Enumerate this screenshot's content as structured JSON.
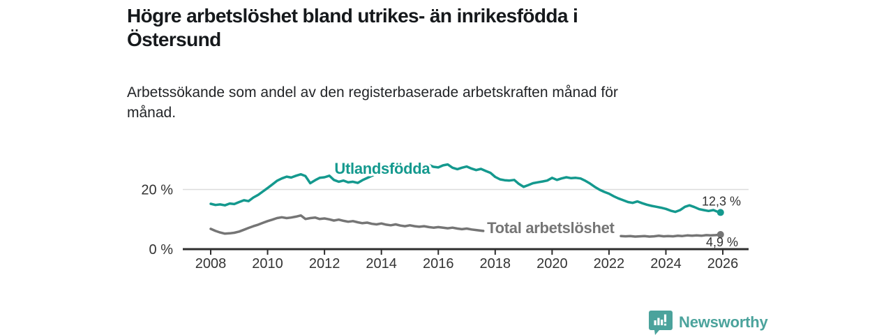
{
  "header": {
    "title_lines": [
      "Högre arbetslöshet bland utrikes- än inrikesfödda i",
      "Östersund"
    ],
    "subtitle_lines": [
      "Arbetssökande som andel av den registerbaserade arbetskraften månad för",
      "månad."
    ]
  },
  "footer": {
    "brand": "Newsworthy",
    "brand_color": "#4BA39C",
    "logo_icon": "newsworthy-speech-bubble-bar-chart-icon"
  },
  "chart_data": {
    "type": "line",
    "title": "Högre arbetslöshet bland utrikes- än inrikesfödda i Östersund",
    "subtitle": "Arbetssökande som andel av den registerbaserade arbetskraften månad för månad.",
    "unit": "%",
    "axis_color": "#333333",
    "grid_color": "#dcdcdc",
    "x_axis": {
      "ticks": [
        2008,
        2010,
        2012,
        2014,
        2016,
        2018,
        2020,
        2022,
        2024,
        2026
      ]
    },
    "y_axis": {
      "ticks": [
        {
          "value": 0,
          "label": "0 %"
        },
        {
          "value": 20,
          "label": "20 %"
        }
      ],
      "range": [
        0,
        30.5
      ],
      "gridlines": [
        20
      ]
    },
    "x_range_years": [
      2008.0,
      2025.92
    ],
    "legend_position": "inline-labels",
    "series": [
      {
        "name": "Utlandsfödda",
        "color": "#14998E",
        "end_label": "12,3 %",
        "end_value": 12.3,
        "label_anchor": [
          2014.03,
          25.3
        ],
        "segments": [
          [
            [
              2008.0,
              15.2
            ],
            [
              2008.17,
              14.8
            ],
            [
              2008.33,
              15.0
            ],
            [
              2008.5,
              14.7
            ],
            [
              2008.67,
              15.3
            ],
            [
              2008.83,
              15.1
            ],
            [
              2009.0,
              15.8
            ],
            [
              2009.17,
              16.4
            ],
            [
              2009.33,
              16.1
            ],
            [
              2009.5,
              17.3
            ],
            [
              2009.67,
              18.2
            ],
            [
              2009.83,
              19.3
            ],
            [
              2010.0,
              20.5
            ],
            [
              2010.17,
              21.7
            ],
            [
              2010.33,
              22.9
            ],
            [
              2010.5,
              23.7
            ],
            [
              2010.67,
              24.3
            ],
            [
              2010.83,
              24.0
            ],
            [
              2011.0,
              24.6
            ],
            [
              2011.17,
              25.1
            ],
            [
              2011.33,
              24.5
            ],
            [
              2011.5,
              22.1
            ],
            [
              2011.67,
              23.1
            ],
            [
              2011.83,
              23.9
            ],
            [
              2012.0,
              24.1
            ],
            [
              2012.17,
              24.6
            ],
            [
              2012.33,
              23.2
            ],
            [
              2012.5,
              22.6
            ],
            [
              2012.67,
              23.0
            ],
            [
              2012.83,
              22.4
            ],
            [
              2013.0,
              22.6
            ],
            [
              2013.17,
              22.2
            ],
            [
              2013.33,
              23.1
            ],
            [
              2013.58,
              24.2
            ],
            [
              2013.83,
              25.3
            ],
            [
              2014.08,
              26.1
            ],
            [
              2014.33,
              26.8
            ],
            [
              2014.58,
              27.3
            ],
            [
              2014.83,
              27.7
            ],
            [
              2015.08,
              28.1
            ],
            [
              2015.33,
              28.2
            ],
            [
              2015.5,
              27.8
            ],
            [
              2015.67,
              28.2
            ],
            [
              2015.83,
              27.6
            ],
            [
              2016.0,
              27.4
            ],
            [
              2016.17,
              28.1
            ],
            [
              2016.33,
              28.4
            ],
            [
              2016.5,
              27.3
            ],
            [
              2016.67,
              26.8
            ],
            [
              2016.83,
              27.3
            ],
            [
              2017.0,
              27.7
            ],
            [
              2017.17,
              27.0
            ],
            [
              2017.33,
              26.5
            ],
            [
              2017.5,
              26.9
            ],
            [
              2017.67,
              26.2
            ],
            [
              2017.83,
              25.6
            ],
            [
              2018.0,
              24.2
            ],
            [
              2018.17,
              23.4
            ],
            [
              2018.33,
              23.1
            ],
            [
              2018.5,
              23.0
            ],
            [
              2018.67,
              23.2
            ],
            [
              2018.83,
              21.9
            ],
            [
              2019.0,
              20.9
            ],
            [
              2019.17,
              21.5
            ],
            [
              2019.33,
              22.1
            ],
            [
              2019.5,
              22.4
            ],
            [
              2019.67,
              22.7
            ],
            [
              2019.83,
              23.0
            ],
            [
              2020.0,
              23.9
            ],
            [
              2020.17,
              23.2
            ],
            [
              2020.33,
              23.7
            ],
            [
              2020.5,
              24.1
            ],
            [
              2020.67,
              23.8
            ],
            [
              2020.83,
              23.9
            ],
            [
              2021.0,
              23.7
            ],
            [
              2021.17,
              22.9
            ],
            [
              2021.33,
              22.0
            ],
            [
              2021.5,
              20.9
            ],
            [
              2021.67,
              19.9
            ],
            [
              2021.83,
              19.2
            ],
            [
              2022.0,
              18.6
            ],
            [
              2022.17,
              17.7
            ],
            [
              2022.33,
              17.0
            ],
            [
              2022.5,
              16.4
            ],
            [
              2022.67,
              15.8
            ],
            [
              2022.83,
              15.5
            ],
            [
              2023.0,
              16.0
            ],
            [
              2023.17,
              15.4
            ],
            [
              2023.33,
              14.9
            ],
            [
              2023.5,
              14.5
            ],
            [
              2023.67,
              14.2
            ],
            [
              2023.83,
              13.9
            ],
            [
              2024.0,
              13.5
            ],
            [
              2024.17,
              12.9
            ],
            [
              2024.33,
              12.5
            ],
            [
              2024.5,
              13.1
            ],
            [
              2024.67,
              14.2
            ],
            [
              2024.83,
              14.7
            ],
            [
              2025.0,
              14.1
            ],
            [
              2025.17,
              13.4
            ],
            [
              2025.33,
              13.1
            ],
            [
              2025.5,
              12.8
            ],
            [
              2025.67,
              13.1
            ],
            [
              2025.83,
              12.5
            ],
            [
              2025.92,
              12.3
            ]
          ]
        ]
      },
      {
        "name": "Total arbetslöshet",
        "color": "#757575",
        "end_label": "4,9 %",
        "end_value": 4.9,
        "label_anchor": [
          2019.95,
          5.4
        ],
        "segments": [
          [
            [
              2008.0,
              6.8
            ],
            [
              2008.17,
              6.1
            ],
            [
              2008.33,
              5.6
            ],
            [
              2008.5,
              5.2
            ],
            [
              2008.67,
              5.3
            ],
            [
              2008.83,
              5.5
            ],
            [
              2009.0,
              5.9
            ],
            [
              2009.17,
              6.5
            ],
            [
              2009.33,
              7.1
            ],
            [
              2009.5,
              7.7
            ],
            [
              2009.67,
              8.2
            ],
            [
              2009.83,
              8.8
            ],
            [
              2010.0,
              9.4
            ],
            [
              2010.17,
              9.9
            ],
            [
              2010.33,
              10.4
            ],
            [
              2010.5,
              10.7
            ],
            [
              2010.67,
              10.4
            ],
            [
              2010.83,
              10.6
            ],
            [
              2011.0,
              10.9
            ],
            [
              2011.17,
              11.3
            ],
            [
              2011.33,
              10.1
            ],
            [
              2011.5,
              10.4
            ],
            [
              2011.67,
              10.6
            ],
            [
              2011.83,
              10.1
            ],
            [
              2012.0,
              10.3
            ],
            [
              2012.17,
              10.0
            ],
            [
              2012.33,
              9.6
            ],
            [
              2012.5,
              9.9
            ],
            [
              2012.67,
              9.5
            ],
            [
              2012.83,
              9.2
            ],
            [
              2013.0,
              9.4
            ],
            [
              2013.17,
              9.0
            ],
            [
              2013.33,
              8.7
            ],
            [
              2013.5,
              8.9
            ],
            [
              2013.67,
              8.5
            ],
            [
              2013.83,
              8.3
            ],
            [
              2014.0,
              8.6
            ],
            [
              2014.17,
              8.2
            ],
            [
              2014.33,
              8.0
            ],
            [
              2014.5,
              8.3
            ],
            [
              2014.67,
              7.9
            ],
            [
              2014.83,
              7.7
            ],
            [
              2015.0,
              8.0
            ],
            [
              2015.17,
              7.7
            ],
            [
              2015.33,
              7.5
            ],
            [
              2015.5,
              7.7
            ],
            [
              2015.67,
              7.4
            ],
            [
              2015.83,
              7.2
            ],
            [
              2016.0,
              7.4
            ],
            [
              2016.17,
              7.2
            ],
            [
              2016.33,
              7.0
            ],
            [
              2016.5,
              7.2
            ],
            [
              2016.67,
              6.9
            ],
            [
              2016.83,
              6.7
            ],
            [
              2017.0,
              6.9
            ],
            [
              2017.17,
              6.6
            ],
            [
              2017.33,
              6.4
            ],
            [
              2017.5,
              6.2
            ],
            [
              2017.58,
              6.1
            ]
          ],
          [
            [
              2022.42,
              4.4
            ],
            [
              2022.58,
              4.3
            ],
            [
              2022.75,
              4.4
            ],
            [
              2022.92,
              4.2
            ],
            [
              2023.08,
              4.3
            ],
            [
              2023.25,
              4.4
            ],
            [
              2023.42,
              4.2
            ],
            [
              2023.58,
              4.3
            ],
            [
              2023.75,
              4.5
            ],
            [
              2023.92,
              4.3
            ],
            [
              2024.08,
              4.4
            ],
            [
              2024.25,
              4.3
            ],
            [
              2024.42,
              4.5
            ],
            [
              2024.58,
              4.4
            ],
            [
              2024.75,
              4.6
            ],
            [
              2024.92,
              4.5
            ],
            [
              2025.08,
              4.6
            ],
            [
              2025.25,
              4.5
            ],
            [
              2025.42,
              4.7
            ],
            [
              2025.58,
              4.6
            ],
            [
              2025.75,
              4.7
            ],
            [
              2025.92,
              4.9
            ]
          ]
        ]
      }
    ]
  }
}
